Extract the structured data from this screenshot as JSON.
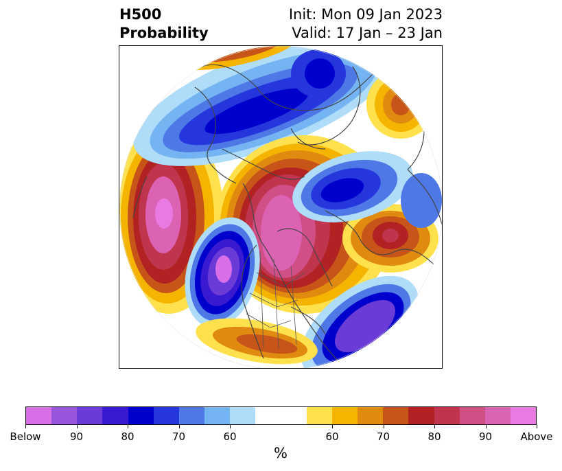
{
  "header": {
    "variable": "H500",
    "product": "Probability",
    "init": "Init: Mon 09 Jan 2023",
    "valid": "Valid: 17 Jan – 23 Jan"
  },
  "colorbar": {
    "unit": "%",
    "colors": [
      "#d86fe6",
      "#9a55de",
      "#6a3bd6",
      "#3a1ad0",
      "#0000cc",
      "#2536dd",
      "#4e78e6",
      "#75b4f2",
      "#aedcf9",
      "#ffffff",
      "#ffffff",
      "#ffe14d",
      "#f5b400",
      "#e08a10",
      "#c75418",
      "#b22222",
      "#c0354e",
      "#cf4f86",
      "#dc62b4",
      "#e87ae2"
    ],
    "labels": [
      "Below",
      "90",
      "80",
      "70",
      "60",
      "60",
      "70",
      "80",
      "90",
      "Above"
    ]
  }
}
